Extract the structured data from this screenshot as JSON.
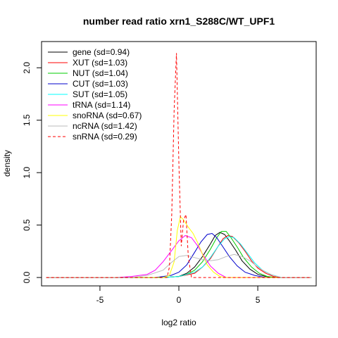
{
  "chart_data": {
    "type": "line",
    "title": "number read ratio xrn1_S288C/WT_UPF1",
    "xlabel": "log2 ratio",
    "ylabel": "density",
    "xlim": [
      -8.7,
      8.7
    ],
    "ylim": [
      -0.08,
      2.25
    ],
    "xticks": [
      -5,
      0,
      5
    ],
    "xtick_labels": [
      "-5",
      "0",
      "5"
    ],
    "yticks": [
      0,
      0.5,
      1,
      1.5,
      2
    ],
    "ytick_labels": [
      "0.0",
      "0.5",
      "1.0",
      "1.5",
      "2.0"
    ],
    "grid": false,
    "legend_position": "top-left",
    "series": [
      {
        "name": "gene (sd=0.94)",
        "color": "#000000",
        "dash": false,
        "x": [
          -8.4,
          -1.0,
          0.0,
          0.5,
          1.0,
          1.5,
          2.0,
          2.3,
          2.6,
          2.9,
          3.2,
          3.6,
          4.0,
          4.5,
          5.0,
          5.5,
          6.0,
          8.4
        ],
        "y": [
          0,
          0,
          0.01,
          0.04,
          0.1,
          0.2,
          0.32,
          0.4,
          0.43,
          0.41,
          0.35,
          0.26,
          0.16,
          0.08,
          0.03,
          0.01,
          0,
          0
        ]
      },
      {
        "name": "XUT (sd=1.03)",
        "color": "#ff0000",
        "dash": false,
        "x": [
          -8.4,
          -1.0,
          0.0,
          1.0,
          1.5,
          2.0,
          2.5,
          2.8,
          3.1,
          3.4,
          3.8,
          4.2,
          4.6,
          5.0,
          5.5,
          6.0,
          6.5,
          8.4
        ],
        "y": [
          0,
          0,
          0.01,
          0.04,
          0.1,
          0.18,
          0.3,
          0.37,
          0.4,
          0.39,
          0.33,
          0.25,
          0.16,
          0.09,
          0.04,
          0.01,
          0,
          0
        ]
      },
      {
        "name": "NUT (sd=1.04)",
        "color": "#00cc00",
        "dash": false,
        "x": [
          -8.4,
          -1.0,
          0.0,
          0.5,
          1.0,
          1.5,
          2.0,
          2.4,
          2.7,
          3.0,
          3.3,
          3.7,
          4.1,
          4.6,
          5.1,
          5.6,
          6.2,
          8.4
        ],
        "y": [
          0,
          0,
          0.01,
          0.03,
          0.07,
          0.15,
          0.27,
          0.38,
          0.44,
          0.44,
          0.38,
          0.29,
          0.19,
          0.1,
          0.04,
          0.01,
          0,
          0
        ]
      },
      {
        "name": "CUT (sd=1.03)",
        "color": "#0000cc",
        "dash": false,
        "x": [
          -8.4,
          -1.5,
          -0.5,
          0.0,
          0.5,
          1.0,
          1.4,
          1.8,
          2.1,
          2.4,
          2.8,
          3.2,
          3.7,
          4.2,
          4.8,
          5.5,
          8.4
        ],
        "y": [
          0,
          0,
          0.02,
          0.05,
          0.12,
          0.24,
          0.34,
          0.41,
          0.42,
          0.38,
          0.29,
          0.2,
          0.11,
          0.05,
          0.02,
          0,
          0
        ]
      },
      {
        "name": "SUT (sd=1.05)",
        "color": "#00ffff",
        "dash": false,
        "x": [
          -8.4,
          -1.0,
          0.0,
          1.0,
          1.5,
          2.0,
          2.5,
          2.9,
          3.2,
          3.5,
          3.9,
          4.3,
          4.8,
          5.3,
          5.8,
          6.5,
          8.4
        ],
        "y": [
          0,
          0,
          0.01,
          0.05,
          0.1,
          0.19,
          0.3,
          0.37,
          0.39,
          0.38,
          0.32,
          0.24,
          0.14,
          0.07,
          0.03,
          0,
          0
        ]
      },
      {
        "name": "tRNA (sd=1.14)",
        "color": "#ff00ff",
        "dash": false,
        "x": [
          -8.4,
          -4.0,
          -3.0,
          -2.5,
          -2.0,
          -1.5,
          -1.0,
          -0.5,
          0.0,
          0.4,
          0.8,
          1.2,
          1.6,
          2.0,
          2.5,
          3.0,
          8.4
        ],
        "y": [
          0,
          0,
          0.01,
          0.02,
          0.03,
          0.07,
          0.15,
          0.25,
          0.35,
          0.4,
          0.38,
          0.3,
          0.2,
          0.11,
          0.04,
          0,
          0
        ]
      },
      {
        "name": "snoRNA (sd=0.67)",
        "color": "#ffff00",
        "dash": false,
        "x": [
          -8.4,
          -1.0,
          -0.6,
          -0.3,
          -0.1,
          0.1,
          0.3,
          0.6,
          0.9,
          1.2,
          1.5,
          1.8,
          2.2,
          2.6,
          3.0,
          8.4
        ],
        "y": [
          0,
          0,
          0.02,
          0.15,
          0.45,
          0.58,
          0.55,
          0.48,
          0.42,
          0.33,
          0.22,
          0.12,
          0.05,
          0.01,
          0,
          0
        ]
      },
      {
        "name": "ncRNA (sd=1.42)",
        "color": "#bbbbbb",
        "dash": false,
        "x": [
          -8.4,
          -3.0,
          -2.0,
          -1.0,
          -0.5,
          0.0,
          0.5,
          1.0,
          1.5,
          2.0,
          2.5,
          3.0,
          3.5,
          4.0,
          4.5,
          5.0,
          5.5,
          6.0,
          6.5,
          8.4
        ],
        "y": [
          0,
          0,
          0.02,
          0.07,
          0.14,
          0.2,
          0.21,
          0.19,
          0.17,
          0.16,
          0.17,
          0.2,
          0.22,
          0.2,
          0.16,
          0.1,
          0.05,
          0.02,
          0,
          0
        ]
      },
      {
        "name": "snRNA (sd=0.29)",
        "color": "#ff0000",
        "dash": true,
        "x": [
          -8.4,
          -0.75,
          -0.6,
          -0.45,
          -0.3,
          -0.15,
          0.0,
          0.15,
          0.3,
          0.45,
          0.6,
          0.8,
          8.4
        ],
        "y": [
          0,
          0,
          0.1,
          0.6,
          1.6,
          2.14,
          1.1,
          0.3,
          0.55,
          0.6,
          0.2,
          0,
          0
        ]
      }
    ]
  }
}
